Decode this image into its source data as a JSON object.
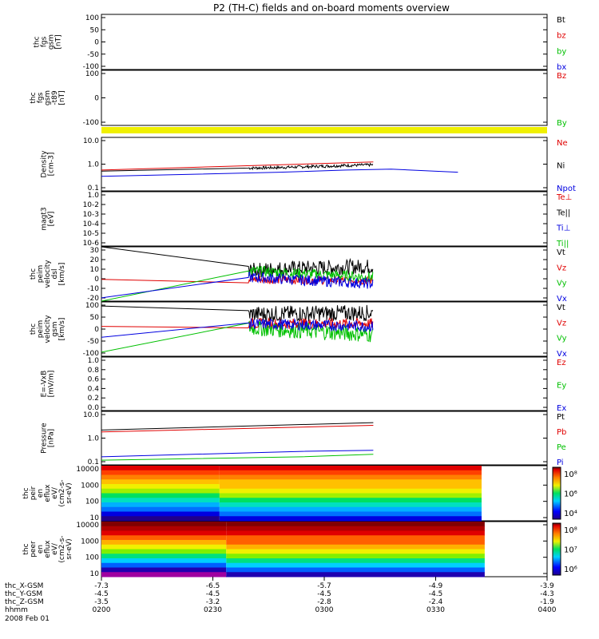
{
  "title": "P2 (TH-C) fields and on-board moments overview",
  "date": "2008 Feb 01",
  "orbit_rows": [
    {
      "label": "thc_X-GSM",
      "values": [
        "-7.3",
        "-6.5",
        "-5.7",
        "-4.9",
        "-3.9"
      ]
    },
    {
      "label": "thc_Y-GSM",
      "values": [
        "-4.5",
        "-4.5",
        "-4.5",
        "-4.5",
        "-4.3"
      ]
    },
    {
      "label": "thc_Z-GSM",
      "values": [
        "-3.5",
        "-3.2",
        "-2.8",
        "-2.4",
        "-1.9"
      ]
    },
    {
      "label": "hhmm",
      "values": [
        "0200",
        "0230",
        "0300",
        "0330",
        "0400"
      ]
    }
  ],
  "colors": {
    "black": "#000000",
    "red": "#e00000",
    "green": "#00c000",
    "blue": "#0000e0",
    "yellow": "#f0f000"
  },
  "chart_data": [
    {
      "id": "p1",
      "type": "line",
      "ylabel": [
        "thc",
        "fgs",
        "gsm",
        "[nT]"
      ],
      "yticks": [
        "100",
        "50",
        "0",
        "-50",
        "-100"
      ],
      "legend": [
        {
          "text": "Bt",
          "color": "black"
        },
        {
          "text": "bz",
          "color": "red"
        },
        {
          "text": "by",
          "color": "green"
        },
        {
          "text": "bx",
          "color": "blue"
        }
      ]
    },
    {
      "id": "p2",
      "type": "line",
      "ylabel": [
        "thc",
        "fgs",
        "gsm",
        "-t89",
        "[nT]"
      ],
      "yticks": [
        "100",
        "0",
        "-100"
      ],
      "legend": [
        {
          "text": "Bz",
          "color": "red"
        },
        {
          "text": "By",
          "color": "green"
        }
      ]
    },
    {
      "id": "p3",
      "type": "line",
      "ylabel": [
        "Density",
        "[cm-3]"
      ],
      "yticks": [
        "10.0",
        "1.0",
        "0.1"
      ],
      "ylim": [
        0.1,
        10
      ],
      "log": true,
      "legend": [
        {
          "text": "Ne",
          "color": "red"
        },
        {
          "text": "Ni",
          "color": "black"
        },
        {
          "text": "Npot",
          "color": "blue"
        }
      ],
      "series": [
        {
          "name": "Ne",
          "color": "red",
          "x": [
            0.0,
            0.61
          ],
          "y": [
            0.6,
            1.2
          ]
        },
        {
          "name": "Ni",
          "color": "black",
          "x": [
            0.0,
            0.4,
            0.61
          ],
          "y": [
            0.55,
            0.75,
            0.95
          ],
          "noise": true,
          "nstart": 0.33,
          "nend": 0.61
        },
        {
          "name": "Npot",
          "color": "blue",
          "x": [
            0.0,
            0.4,
            0.55,
            0.65,
            0.8
          ],
          "y": [
            0.35,
            0.5,
            0.6,
            0.65,
            0.5
          ]
        }
      ]
    },
    {
      "id": "p4",
      "type": "line",
      "ylabel": [
        "magt3",
        "[eV]"
      ],
      "yticks": [
        "1.0",
        "10-2",
        "10-3",
        "10-4",
        "10-5",
        "10-6"
      ],
      "legend": [
        {
          "text": "Te⊥",
          "color": "red"
        },
        {
          "text": "Te||",
          "color": "black"
        },
        {
          "text": "Ti⊥",
          "color": "blue"
        },
        {
          "text": "Ti||",
          "color": "green"
        }
      ]
    },
    {
      "id": "p5",
      "type": "line",
      "ylabel": [
        "thc",
        "peim",
        "velocity",
        "dsl",
        "[km/s]"
      ],
      "yticks": [
        "30",
        "20",
        "10",
        "0",
        "-10",
        "-20"
      ],
      "ylim": [
        -20,
        30
      ],
      "legend": [
        {
          "text": "Vt",
          "color": "black"
        },
        {
          "text": "Vz",
          "color": "red"
        },
        {
          "text": "Vy",
          "color": "green"
        },
        {
          "text": "Vx",
          "color": "blue"
        }
      ],
      "series": [
        {
          "name": "Vt",
          "color": "black",
          "x": [
            0.0,
            0.33,
            0.4,
            0.61
          ],
          "y": [
            30,
            8,
            10,
            12
          ],
          "noise": true,
          "nstart": 0.33,
          "nend": 0.61,
          "amp": 7
        },
        {
          "name": "Vz",
          "color": "red",
          "x": [
            0.0,
            0.33,
            0.61
          ],
          "y": [
            0,
            0,
            -1
          ],
          "noise": true,
          "nstart": 0.33,
          "nend": 0.61,
          "amp": 4
        },
        {
          "name": "Vy",
          "color": "green",
          "x": [
            0.0,
            0.33,
            0.61
          ],
          "y": [
            -20,
            8,
            2
          ],
          "noise": true,
          "nstart": 0.33,
          "nend": 0.61,
          "amp": 5
        },
        {
          "name": "Vx",
          "color": "blue",
          "x": [
            0.0,
            0.33,
            0.61
          ],
          "y": [
            -17,
            2,
            -4
          ],
          "noise": true,
          "nstart": 0.33,
          "nend": 0.61,
          "amp": 5
        }
      ]
    },
    {
      "id": "p6",
      "type": "line",
      "ylabel": [
        "thc",
        "peim",
        "velocity",
        "gsm",
        "[km/s]"
      ],
      "yticks": [
        "100",
        "50",
        "0",
        "-50",
        "-100"
      ],
      "ylim": [
        -100,
        100
      ],
      "legend": [
        {
          "text": "Vt",
          "color": "black"
        },
        {
          "text": "Vz",
          "color": "red"
        },
        {
          "text": "Vy",
          "color": "green"
        },
        {
          "text": "Vx",
          "color": "blue"
        }
      ],
      "series": [
        {
          "name": "Vt",
          "color": "black",
          "x": [
            0.0,
            0.33,
            0.61
          ],
          "y": [
            85,
            55,
            60
          ],
          "noise": true,
          "nstart": 0.33,
          "nend": 0.61,
          "amp": 30
        },
        {
          "name": "Vz",
          "color": "red",
          "x": [
            0.0,
            0.33,
            0.61
          ],
          "y": [
            10,
            20,
            20
          ],
          "noise": true,
          "nstart": 0.33,
          "nend": 0.61,
          "amp": 20
        },
        {
          "name": "Vy",
          "color": "green",
          "x": [
            0.0,
            0.33,
            0.61
          ],
          "y": [
            -85,
            5,
            -20
          ],
          "noise": true,
          "nstart": 0.33,
          "nend": 0.61,
          "amp": 30
        },
        {
          "name": "Vx",
          "color": "blue",
          "x": [
            0.0,
            0.33,
            0.61
          ],
          "y": [
            -30,
            20,
            10
          ],
          "noise": true,
          "nstart": 0.33,
          "nend": 0.61,
          "amp": 20
        }
      ]
    },
    {
      "id": "p7",
      "type": "line",
      "ylabel": [
        "E=-VxB",
        "[mV/m]"
      ],
      "yticks": [
        "1.0",
        "0.8",
        "0.6",
        "0.4",
        "0.2",
        "0.0"
      ],
      "legend": [
        {
          "text": "Ez",
          "color": "red"
        },
        {
          "text": "Ey",
          "color": "green"
        },
        {
          "text": "Ex",
          "color": "blue"
        }
      ]
    },
    {
      "id": "p8",
      "type": "line",
      "ylabel": [
        "Pressure",
        "[nPa]"
      ],
      "yticks": [
        "10.0",
        "1.0",
        "0.1"
      ],
      "ylim": [
        0.1,
        10
      ],
      "log": true,
      "legend": [
        {
          "text": "Pt",
          "color": "black"
        },
        {
          "text": "Pb",
          "color": "red"
        },
        {
          "text": "Pe",
          "color": "green"
        },
        {
          "text": "Pi",
          "color": "blue"
        }
      ],
      "series": [
        {
          "name": "Pt",
          "color": "black",
          "x": [
            0.0,
            0.61
          ],
          "y": [
            2.0,
            3.8
          ]
        },
        {
          "name": "Pb",
          "color": "red",
          "x": [
            0.0,
            0.61
          ],
          "y": [
            1.7,
            3.0
          ]
        },
        {
          "name": "Pi",
          "color": "blue",
          "x": [
            0.0,
            0.45,
            0.61
          ],
          "y": [
            0.2,
            0.32,
            0.35
          ]
        },
        {
          "name": "Pe",
          "color": "green",
          "x": [
            0.0,
            0.45,
            0.61
          ],
          "y": [
            0.15,
            0.2,
            0.25
          ]
        }
      ]
    },
    {
      "id": "p9",
      "type": "heatmap",
      "ylabel": [
        "thc",
        "peir",
        "en",
        "eflux",
        "eV/",
        "(cm2-s-",
        "sr-eV)"
      ],
      "yticks": [
        "10000",
        "1000",
        "100",
        "10"
      ],
      "colorbar": [
        "10⁸",
        "10⁶",
        "10⁴"
      ]
    },
    {
      "id": "p10",
      "type": "heatmap",
      "ylabel": [
        "thc",
        "peer",
        "en",
        "eflux",
        "eV/",
        "(cm2-s-",
        "sr-eV)"
      ],
      "yticks": [
        "10000",
        "1000",
        "100",
        "10"
      ],
      "colorbar": [
        "10⁸",
        "10⁷",
        "10⁶"
      ]
    }
  ]
}
